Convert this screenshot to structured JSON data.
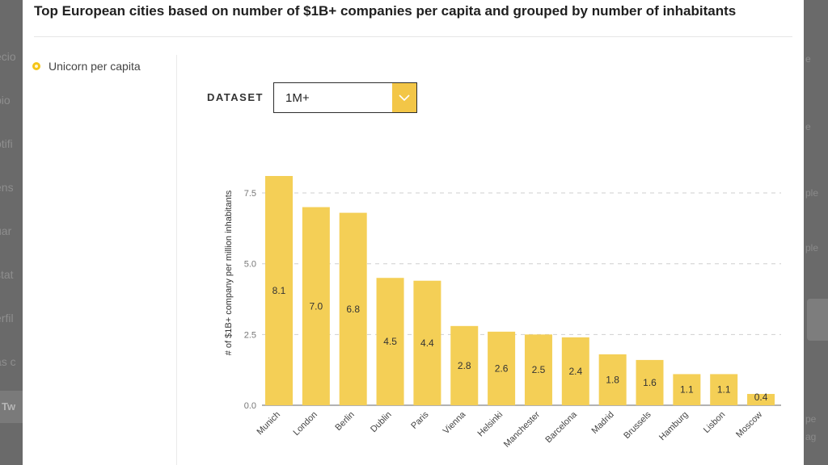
{
  "page_title": "Top European cities based on number of $1B+ companies per capita and grouped by number of inhabitants",
  "legend": {
    "label": "Unicorn per capita",
    "color": "#f5c518"
  },
  "dataset_filter": {
    "label": "DATASET",
    "selected": "1M+"
  },
  "background_left_fragments": [
    "ecio",
    "pio",
    "otifi",
    "ens",
    "uar",
    "stat",
    "erfil",
    "as c"
  ],
  "background_left_button": "Tw",
  "background_right_fragments": [
    "e",
    "e",
    "ple",
    "ple",
    "pe",
    "ag"
  ],
  "chart_data": {
    "type": "bar",
    "title": "Top European cities based on number of $1B+ companies per capita and grouped by number of inhabitants",
    "xlabel": "",
    "ylabel": "# of $1B+ company per million inhabitants",
    "categories": [
      "Munich",
      "London",
      "Berlin",
      "Dublin",
      "Paris",
      "Vienna",
      "Helsinki",
      "Manchester",
      "Barcelona",
      "Madrid",
      "Brussels",
      "Hamburg",
      "Lisbon",
      "Moscow"
    ],
    "values": [
      8.1,
      7.0,
      6.8,
      4.5,
      4.4,
      2.8,
      2.6,
      2.5,
      2.4,
      1.8,
      1.6,
      1.1,
      1.1,
      0.4
    ],
    "value_labels": [
      "8.1",
      "7.0",
      "6.8",
      "4.5",
      "4.4",
      "2.8",
      "2.6",
      "2.5",
      "2.4",
      "1.8",
      "1.6",
      "1.1",
      "1.1",
      "0.4"
    ],
    "yticks": [
      0,
      2.5,
      5.0,
      7.5
    ],
    "ytick_labels": [
      "0.0",
      "2.5",
      "5.0",
      "7.5"
    ],
    "ylim": [
      0,
      8.1
    ],
    "grid": true,
    "bar_color": "#f4cf56",
    "series": [
      {
        "name": "Unicorn per capita",
        "values": [
          8.1,
          7.0,
          6.8,
          4.5,
          4.4,
          2.8,
          2.6,
          2.5,
          2.4,
          1.8,
          1.6,
          1.1,
          1.1,
          0.4
        ]
      }
    ]
  }
}
